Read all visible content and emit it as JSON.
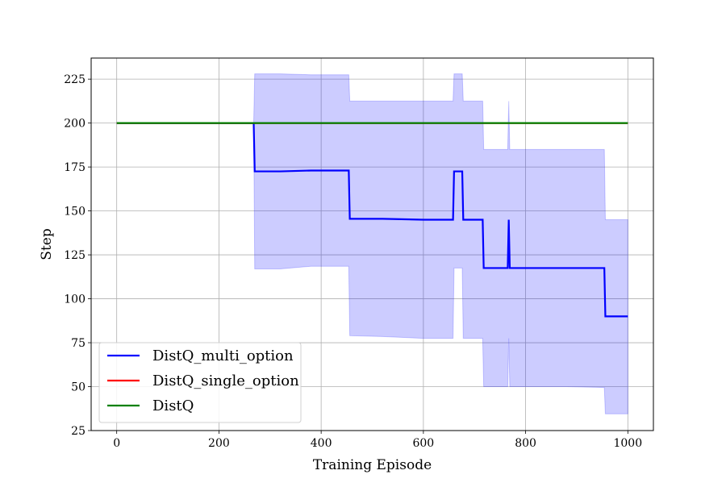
{
  "chart_data": {
    "type": "line",
    "title": "",
    "xlabel": "Training Episode",
    "ylabel": "Step",
    "xlim": [
      -50,
      1050
    ],
    "ylim": [
      25,
      237
    ],
    "xticks": [
      0,
      200,
      400,
      600,
      800,
      1000
    ],
    "yticks": [
      25,
      50,
      75,
      100,
      125,
      150,
      175,
      200,
      225
    ],
    "grid": true,
    "legend_position": "lower-left",
    "series": [
      {
        "name": "DistQ_multi_option",
        "color": "#0000ff",
        "x": [
          0,
          268,
          270,
          320,
          380,
          454,
          456,
          520,
          600,
          658,
          660,
          676,
          678,
          716,
          718,
          765,
          767,
          769,
          800,
          880,
          954,
          956,
          1000
        ],
        "y": [
          200,
          200,
          172.5,
          172.5,
          173,
          173,
          145.5,
          145.5,
          145,
          145,
          172.5,
          172.5,
          145,
          145,
          117.5,
          117.5,
          145,
          117.5,
          117.5,
          117.5,
          117.5,
          90,
          90
        ],
        "band_low": [
          200,
          200,
          117,
          117,
          118.5,
          118.5,
          79,
          78.5,
          77.5,
          77.5,
          117.5,
          117.5,
          77.5,
          77.5,
          50,
          50,
          77.5,
          50,
          50,
          50,
          49.5,
          34.5,
          34.5
        ],
        "band_high": [
          200,
          200,
          228,
          228,
          227.5,
          227.5,
          212.5,
          212.5,
          212.5,
          212.5,
          228,
          228,
          212.5,
          212.5,
          185,
          185,
          212.5,
          185,
          185,
          185,
          185,
          145,
          145
        ]
      },
      {
        "name": "DistQ_single_option",
        "color": "#ff0000",
        "x": [
          0,
          1000
        ],
        "y": [
          200,
          200
        ]
      },
      {
        "name": "DistQ",
        "color": "#008000",
        "x": [
          0,
          1000
        ],
        "y": [
          200,
          200
        ]
      }
    ]
  }
}
